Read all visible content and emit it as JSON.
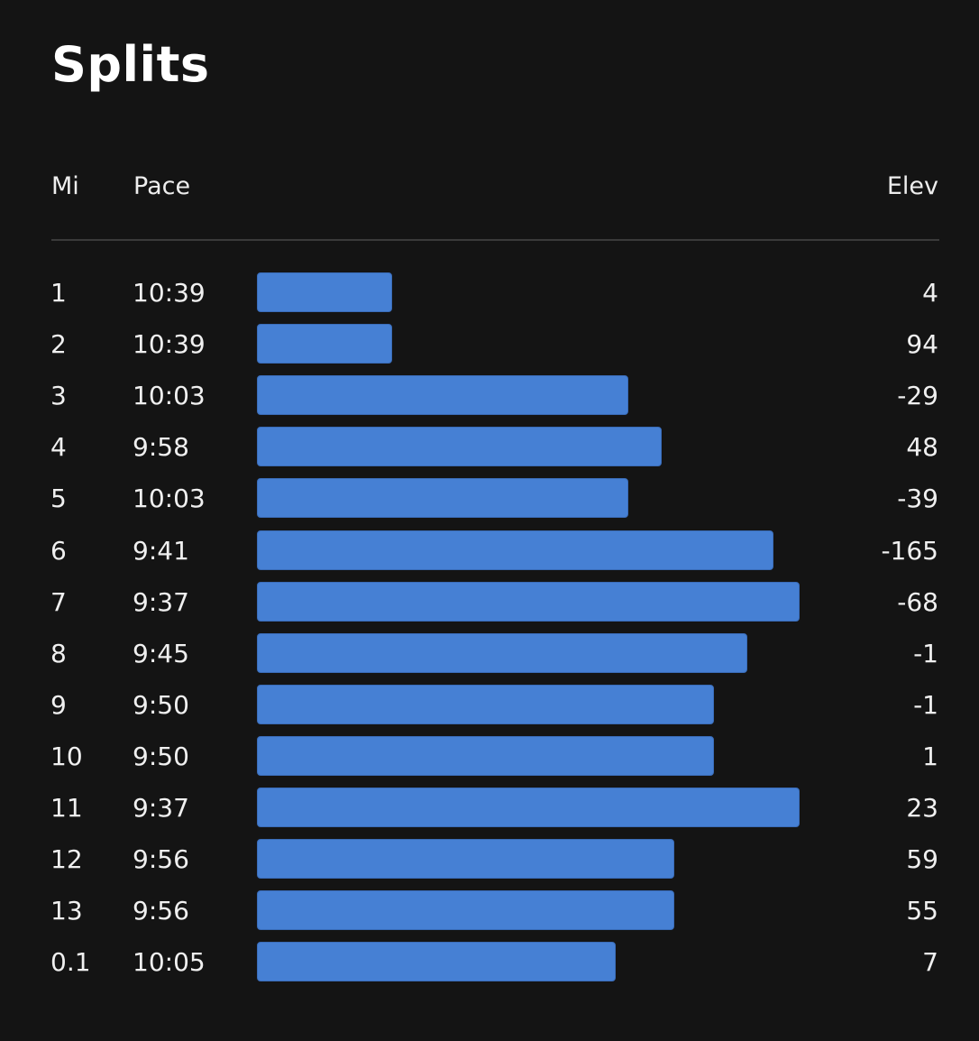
{
  "title": "Splits",
  "columns": {
    "mi": "Mi",
    "pace": "Pace",
    "elev": "Elev"
  },
  "colors": {
    "background": "#141414",
    "bar": "#4680d4"
  },
  "splits": [
    {
      "mi": "1",
      "pace": "10:39",
      "elev": "4"
    },
    {
      "mi": "2",
      "pace": "10:39",
      "elev": "94"
    },
    {
      "mi": "3",
      "pace": "10:03",
      "elev": "-29"
    },
    {
      "mi": "4",
      "pace": "9:58",
      "elev": "48"
    },
    {
      "mi": "5",
      "pace": "10:03",
      "elev": "-39"
    },
    {
      "mi": "6",
      "pace": "9:41",
      "elev": "-165"
    },
    {
      "mi": "7",
      "pace": "9:37",
      "elev": "-68"
    },
    {
      "mi": "8",
      "pace": "9:45",
      "elev": "-1"
    },
    {
      "mi": "9",
      "pace": "9:50",
      "elev": "-1"
    },
    {
      "mi": "10",
      "pace": "9:50",
      "elev": "1"
    },
    {
      "mi": "11",
      "pace": "9:37",
      "elev": "23"
    },
    {
      "mi": "12",
      "pace": "9:56",
      "elev": "59"
    },
    {
      "mi": "13",
      "pace": "9:56",
      "elev": "55"
    },
    {
      "mi": "0.1",
      "pace": "10:05",
      "elev": "7"
    }
  ]
}
